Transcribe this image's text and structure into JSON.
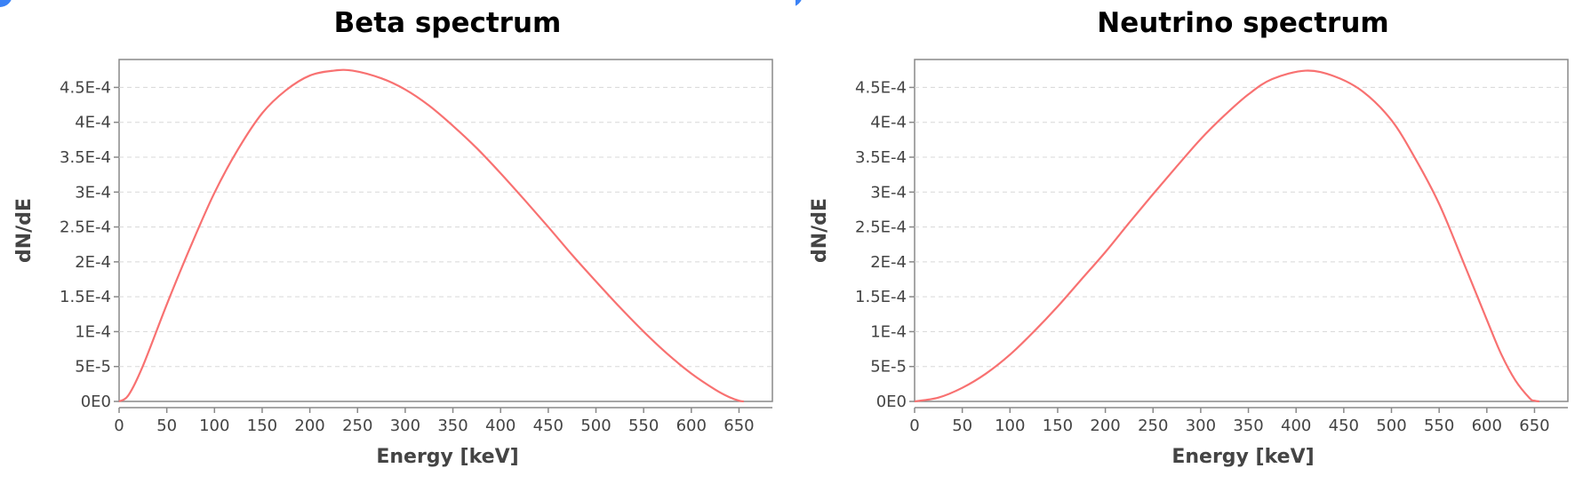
{
  "accent_color": "#3b82f6",
  "chart_data": [
    {
      "type": "line",
      "title": "Beta spectrum",
      "xlabel": "Energy [keV]",
      "ylabel": "dN/dE",
      "xlim": [
        0,
        685
      ],
      "ylim": [
        0,
        0.00049
      ],
      "x_ticks": [
        0,
        50,
        100,
        150,
        200,
        250,
        300,
        350,
        400,
        450,
        500,
        550,
        600,
        650
      ],
      "x_tick_labels": [
        "0",
        "50",
        "100",
        "150",
        "200",
        "250",
        "300",
        "350",
        "400",
        "450",
        "500",
        "550",
        "600",
        "650"
      ],
      "y_ticks": [
        0,
        5e-05,
        0.0001,
        0.00015,
        0.0002,
        0.00025,
        0.0003,
        0.00035,
        0.0004,
        0.00045
      ],
      "y_tick_labels": [
        "0E0",
        "5E-5",
        "1E-4",
        "1.5E-4",
        "2E-4",
        "2.5E-4",
        "3E-4",
        "3.5E-4",
        "4E-4",
        "4.5E-4"
      ],
      "grid": true,
      "series": [
        {
          "color": "#f87171",
          "x": [
            0,
            10,
            25,
            50,
            75,
            100,
            125,
            150,
            175,
            200,
            225,
            245,
            275,
            300,
            325,
            350,
            375,
            400,
            425,
            450,
            475,
            500,
            525,
            550,
            575,
            600,
            625,
            640,
            650,
            655
          ],
          "y": [
            0,
            9.3e-06,
            5.1e-05,
            0.000139,
            0.000222,
            0.000299,
            0.000362,
            0.000413,
            0.000446,
            0.000467,
            0.000474,
            0.000474,
            0.000463,
            0.000447,
            0.000424,
            0.000395,
            0.000363,
            0.000327,
            0.000289,
            0.00025,
            0.00021,
            0.000172,
            0.000135,
            0.0001,
            6.8e-05,
            4e-05,
            1.7e-05,
            6e-06,
            1e-06,
            0
          ]
        }
      ]
    },
    {
      "type": "line",
      "title": "Neutrino spectrum",
      "xlabel": "Energy [keV]",
      "ylabel": "dN/dE",
      "xlim": [
        0,
        685
      ],
      "ylim": [
        0,
        0.00049
      ],
      "x_ticks": [
        0,
        50,
        100,
        150,
        200,
        250,
        300,
        350,
        400,
        450,
        500,
        550,
        600,
        650
      ],
      "x_tick_labels": [
        "0",
        "50",
        "100",
        "150",
        "200",
        "250",
        "300",
        "350",
        "400",
        "450",
        "500",
        "550",
        "600",
        "650"
      ],
      "y_ticks": [
        0,
        5e-05,
        0.0001,
        0.00015,
        0.0002,
        0.00025,
        0.0003,
        0.00035,
        0.0004,
        0.00045
      ],
      "y_tick_labels": [
        "0E0",
        "5E-5",
        "1E-4",
        "1.5E-4",
        "2E-4",
        "2.5E-4",
        "3E-4",
        "3.5E-4",
        "4E-4",
        "4.5E-4"
      ],
      "grid": true,
      "series": [
        {
          "color": "#f87171",
          "x": [
            0,
            25,
            50,
            75,
            100,
            125,
            150,
            175,
            200,
            225,
            250,
            275,
            300,
            325,
            350,
            375,
            410,
            440,
            470,
            500,
            525,
            550,
            575,
            600,
            615,
            630,
            645,
            650,
            655
          ],
          "y": [
            0,
            5.5e-06,
            1.95e-05,
            4e-05,
            6.7e-05,
            0.0001,
            0.000136,
            0.000175,
            0.000214,
            0.000256,
            0.000297,
            0.000337,
            0.000376,
            0.00041,
            0.00044,
            0.000462,
            0.000474,
            0.000466,
            0.000444,
            0.000403,
            0.000348,
            0.000283,
            0.000201,
            0.000117,
            6.8e-05,
            3e-05,
            4.5e-06,
            1e-06,
            0
          ]
        }
      ]
    }
  ]
}
